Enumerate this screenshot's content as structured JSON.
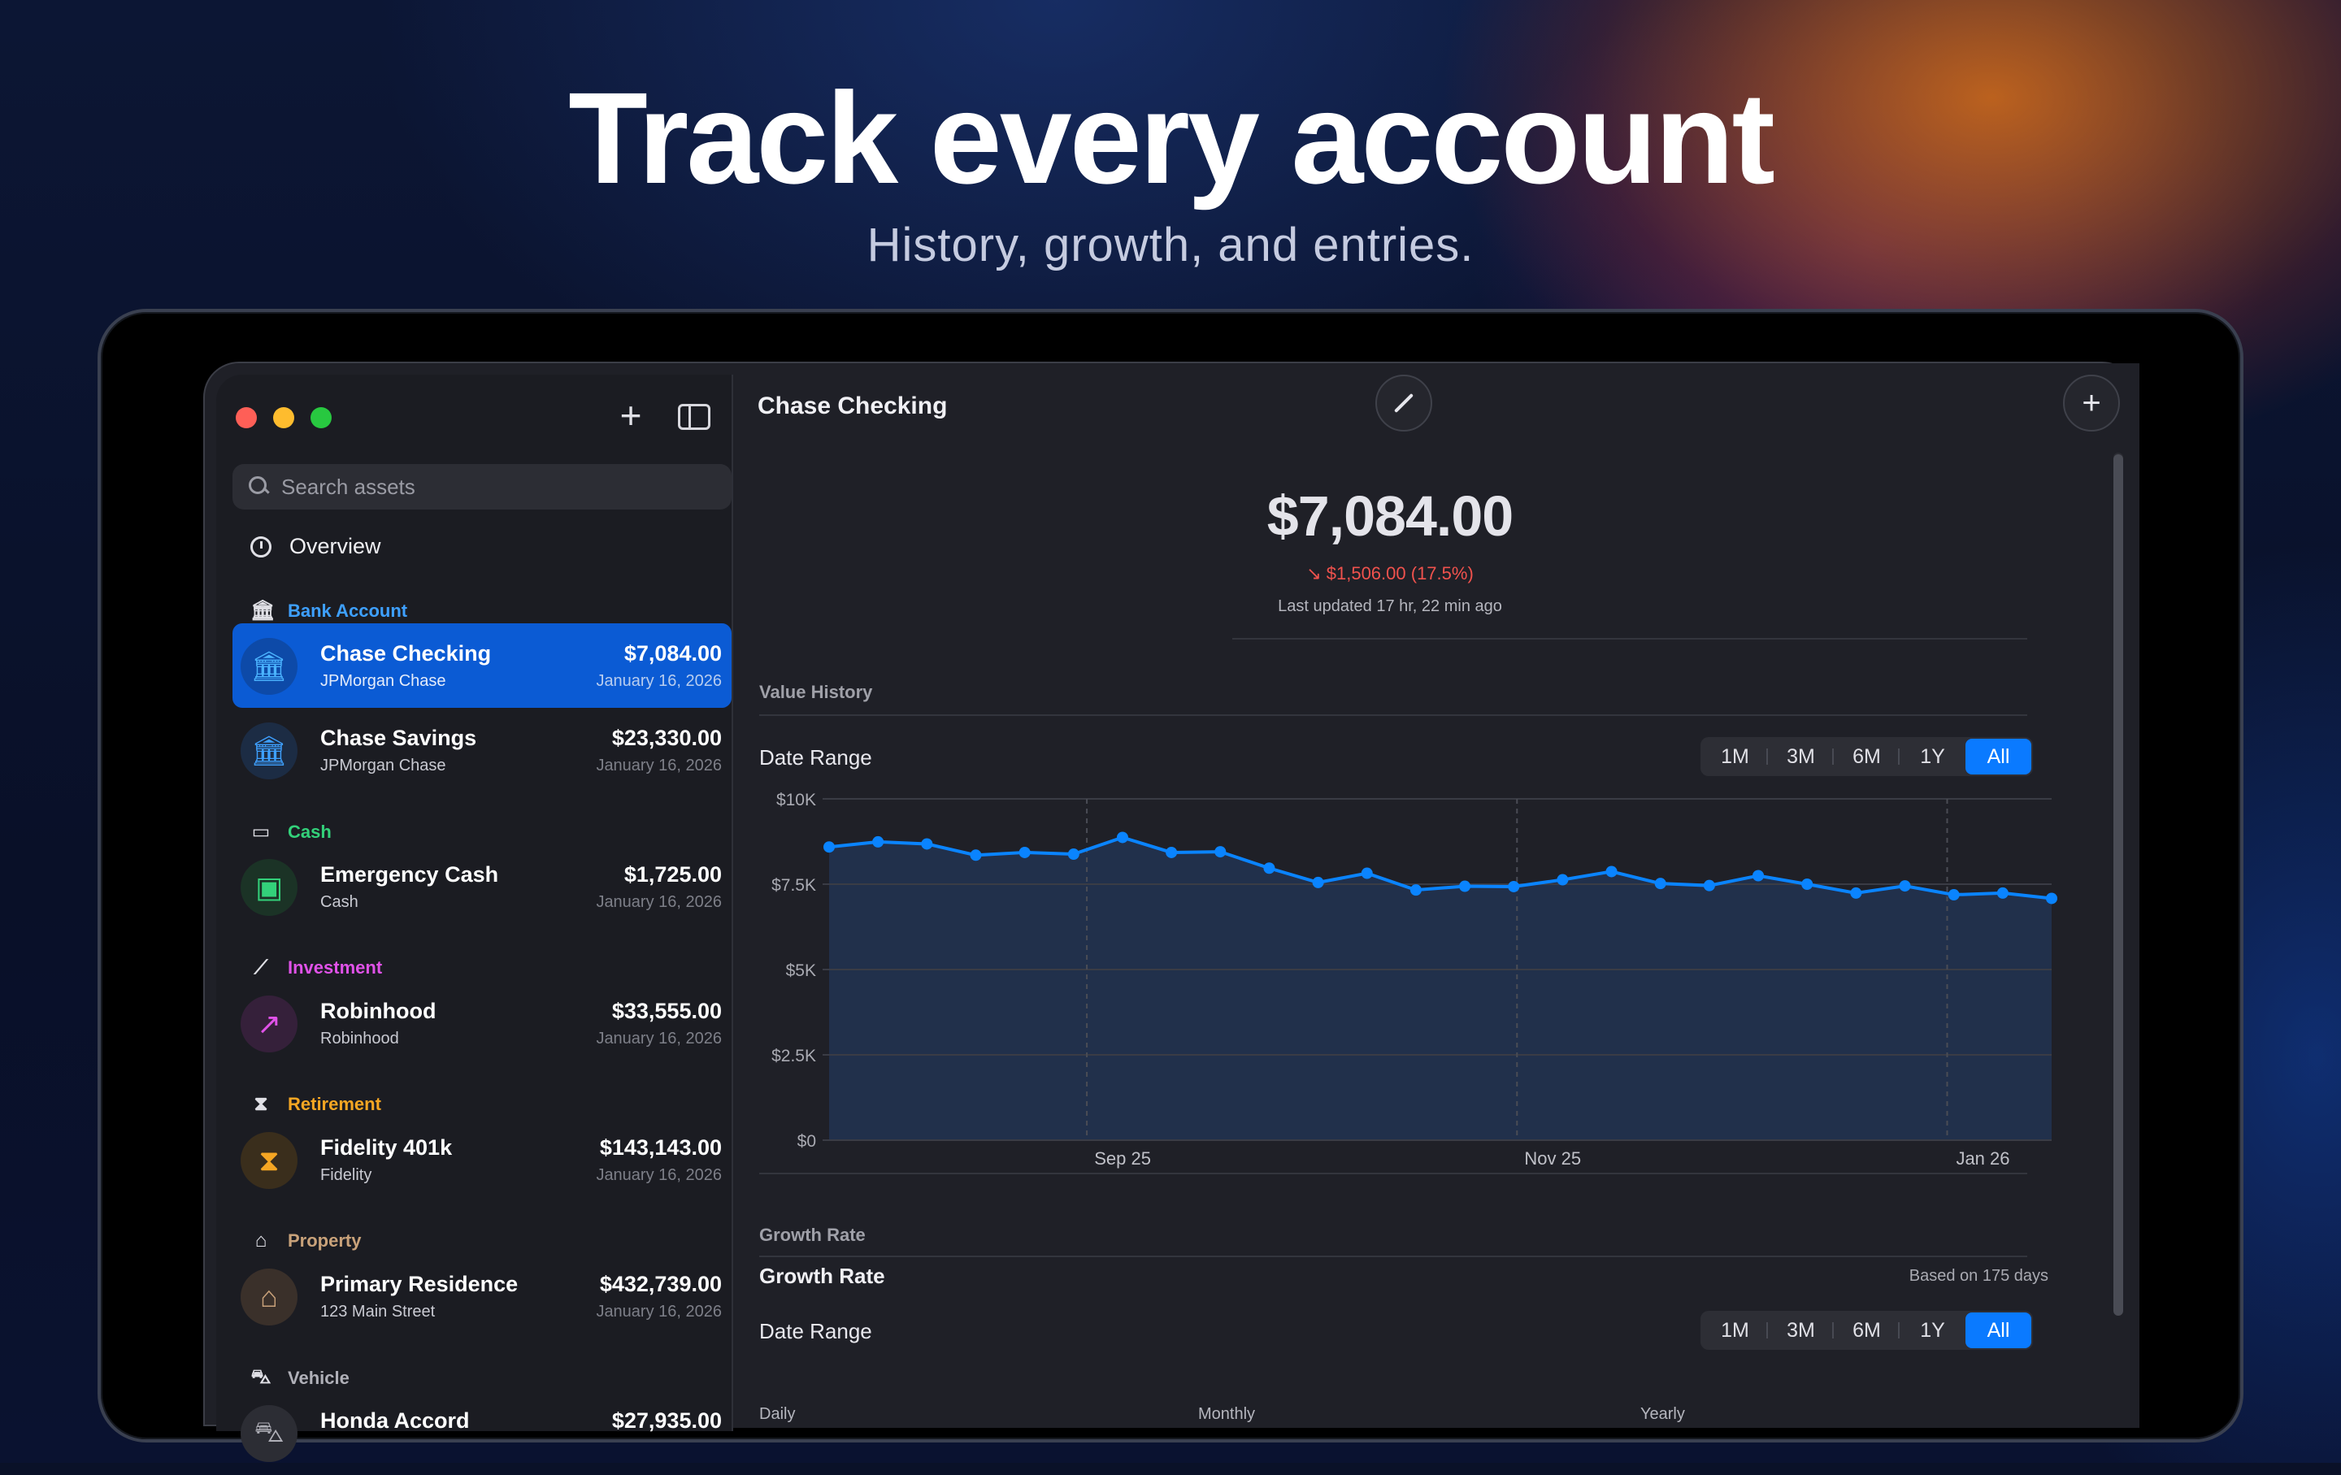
{
  "hero": {
    "title": "Track every account",
    "subtitle": "History, growth, and entries."
  },
  "sidebar": {
    "search_placeholder": "Search assets",
    "overview_label": "Overview",
    "sections": [
      {
        "label": "Bank Account",
        "color": "#3ea0ff",
        "icon": "bank-icon"
      },
      {
        "label": "Cash",
        "color": "#33d17a",
        "icon": "banknote-icon"
      },
      {
        "label": "Investment",
        "color": "#e052e8",
        "icon": "chart-line-icon"
      },
      {
        "label": "Retirement",
        "color": "#f5a623",
        "icon": "hourglass-icon"
      },
      {
        "label": "Property",
        "color": "#c9a27a",
        "icon": "house-icon"
      },
      {
        "label": "Vehicle",
        "color": "#b0b0b8",
        "icon": "car-icon"
      }
    ],
    "items": [
      {
        "name": "Chase Checking",
        "sub": "JPMorgan Chase",
        "amount": "$7,084.00",
        "date": "January 16, 2026",
        "icon": "bank-icon",
        "selected": true
      },
      {
        "name": "Chase Savings",
        "sub": "JPMorgan Chase",
        "amount": "$23,330.00",
        "date": "January 16, 2026",
        "icon": "bank-icon"
      },
      {
        "name": "Emergency Cash",
        "sub": "Cash",
        "amount": "$1,725.00",
        "date": "January 16, 2026",
        "icon": "banknote-icon"
      },
      {
        "name": "Robinhood",
        "sub": "Robinhood",
        "amount": "$33,555.00",
        "date": "January 16, 2026",
        "icon": "chart-line-icon"
      },
      {
        "name": "Fidelity 401k",
        "sub": "Fidelity",
        "amount": "$143,143.00",
        "date": "January 16, 2026",
        "icon": "hourglass-icon"
      },
      {
        "name": "Primary Residence",
        "sub": "123 Main Street",
        "amount": "$432,739.00",
        "date": "January 16, 2026",
        "icon": "house-icon"
      },
      {
        "name": "Honda Accord",
        "sub": "",
        "amount": "$27,935.00",
        "date": "",
        "icon": "car-icon"
      }
    ]
  },
  "main": {
    "title": "Chase Checking",
    "value": "$7,084.00",
    "change_arrow": "↘",
    "change_amount": "$1,506.00",
    "change_pct": "(17.5%)",
    "last_updated": "Last updated 17 hr, 22 min ago",
    "value_history_label": "Value History",
    "date_range_label": "Date Range",
    "range_options": [
      "1M",
      "3M",
      "6M",
      "1Y",
      "All"
    ],
    "range_selected": "All",
    "growth_section_label": "Growth Rate",
    "growth_title": "Growth Rate",
    "growth_based_on": "Based on 175 days",
    "growth_columns": [
      "Daily",
      "Monthly",
      "Yearly"
    ]
  },
  "chart_data": {
    "type": "area",
    "y_ticks": [
      "$10K",
      "$7.5K",
      "$5K",
      "$2.5K",
      "$0"
    ],
    "x_ticks": [
      "Sep 25",
      "Nov 25",
      "Jan 26"
    ],
    "ylim": [
      0,
      10000
    ],
    "grid": true,
    "color": "#0a84ff",
    "values": [
      8590,
      8740,
      8680,
      8350,
      8430,
      8380,
      8870,
      8430,
      8450,
      7970,
      7550,
      7820,
      7330,
      7440,
      7430,
      7630,
      7870,
      7520,
      7460,
      7750,
      7500,
      7240,
      7450,
      7190,
      7240,
      7084
    ]
  }
}
